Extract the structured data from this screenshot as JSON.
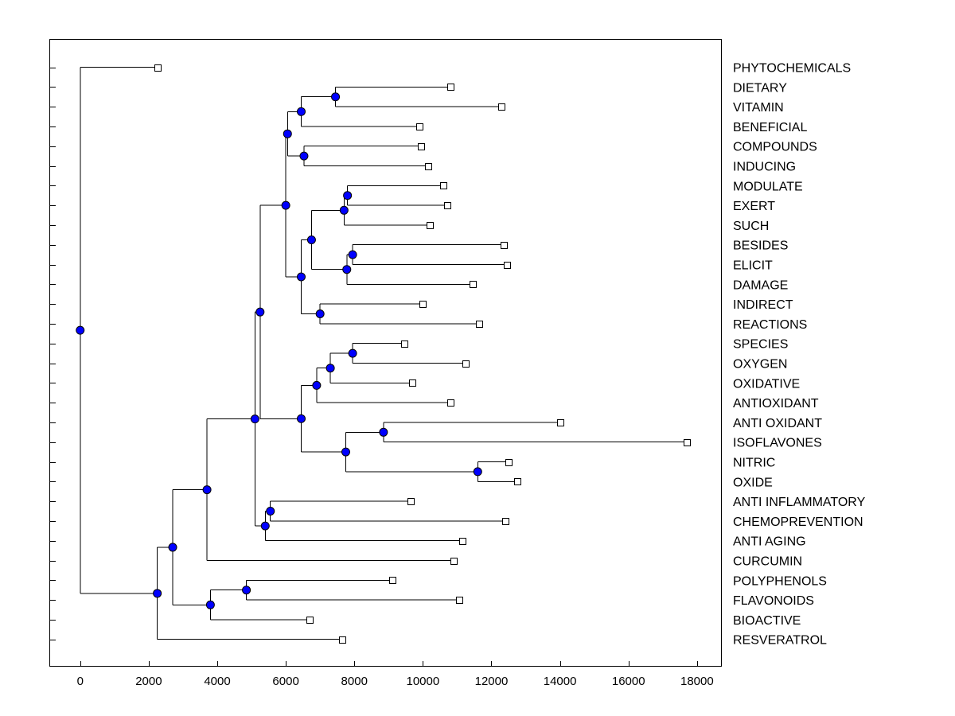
{
  "chart_data": {
    "type": "dendrogram",
    "title": "",
    "xlabel": "",
    "ylabel": "",
    "xlim": [
      -900,
      18700
    ],
    "x_ticks": [
      0,
      2000,
      4000,
      6000,
      8000,
      10000,
      12000,
      14000,
      16000,
      18000
    ],
    "node_color": "#0000ff",
    "leaves": [
      {
        "label": "PHYTOCHEMICALS",
        "x": 2250
      },
      {
        "label": "DIETARY",
        "x": 10800
      },
      {
        "label": "VITAMIN",
        "x": 12300
      },
      {
        "label": "BENEFICIAL",
        "x": 9900
      },
      {
        "label": "COMPOUNDS",
        "x": 9950
      },
      {
        "label": "INDUCING",
        "x": 10150
      },
      {
        "label": "MODULATE",
        "x": 10600
      },
      {
        "label": "EXERT",
        "x": 10700
      },
      {
        "label": "SUCH",
        "x": 10200
      },
      {
        "label": "BESIDES",
        "x": 12350
      },
      {
        "label": "ELICIT",
        "x": 12450
      },
      {
        "label": "DAMAGE",
        "x": 11450
      },
      {
        "label": "INDIRECT",
        "x": 10000
      },
      {
        "label": "REACTIONS",
        "x": 11650
      },
      {
        "label": "SPECIES",
        "x": 9450
      },
      {
        "label": "OXYGEN",
        "x": 11250
      },
      {
        "label": "OXIDATIVE",
        "x": 9700
      },
      {
        "label": "ANTIOXIDANT",
        "x": 10800
      },
      {
        "label": "ANTI OXIDANT",
        "x": 14000
      },
      {
        "label": "ISOFLAVONES",
        "x": 17700
      },
      {
        "label": "NITRIC",
        "x": 12500
      },
      {
        "label": "OXIDE",
        "x": 12750
      },
      {
        "label": "ANTI INFLAMMATORY",
        "x": 9650
      },
      {
        "label": "CHEMOPREVENTION",
        "x": 12400
      },
      {
        "label": "ANTI AGING",
        "x": 11150
      },
      {
        "label": "CURCUMIN",
        "x": 10900
      },
      {
        "label": "POLYPHENOLS",
        "x": 9100
      },
      {
        "label": "FLAVONOIDS",
        "x": 11050
      },
      {
        "label": "BIOACTIVE",
        "x": 6700
      },
      {
        "label": "RESVERATROL",
        "x": 7650
      }
    ],
    "merges": [
      {
        "id": "n1",
        "x": 7450,
        "children": [
          "DIETARY",
          "VITAMIN"
        ]
      },
      {
        "id": "n2",
        "x": 6450,
        "children": [
          "n1",
          "BENEFICIAL"
        ]
      },
      {
        "id": "n3",
        "x": 6530,
        "children": [
          "COMPOUNDS",
          "INDUCING"
        ]
      },
      {
        "id": "n4",
        "x": 6050,
        "children": [
          "n2",
          "n3"
        ]
      },
      {
        "id": "n5",
        "x": 7800,
        "children": [
          "MODULATE",
          "EXERT"
        ]
      },
      {
        "id": "n6",
        "x": 7700,
        "children": [
          "n5",
          "SUCH"
        ]
      },
      {
        "id": "n7",
        "x": 7950,
        "children": [
          "BESIDES",
          "ELICIT"
        ]
      },
      {
        "id": "n8",
        "x": 7780,
        "children": [
          "n7",
          "DAMAGE"
        ]
      },
      {
        "id": "n9",
        "x": 6750,
        "children": [
          "n6",
          "n8"
        ]
      },
      {
        "id": "n10",
        "x": 7000,
        "children": [
          "INDIRECT",
          "REACTIONS"
        ]
      },
      {
        "id": "n11",
        "x": 6450,
        "children": [
          "n9",
          "n10"
        ]
      },
      {
        "id": "n12",
        "x": 6000,
        "children": [
          "n4",
          "n11"
        ]
      },
      {
        "id": "n13",
        "x": 7950,
        "children": [
          "SPECIES",
          "OXYGEN"
        ]
      },
      {
        "id": "n14",
        "x": 7300,
        "children": [
          "n13",
          "OXIDATIVE"
        ]
      },
      {
        "id": "n15",
        "x": 6900,
        "children": [
          "n14",
          "ANTIOXIDANT"
        ]
      },
      {
        "id": "n16",
        "x": 8850,
        "children": [
          "ANTI OXIDANT",
          "ISOFLAVONES"
        ]
      },
      {
        "id": "n17",
        "x": 11600,
        "children": [
          "NITRIC",
          "OXIDE"
        ]
      },
      {
        "id": "n18",
        "x": 7750,
        "children": [
          "n16",
          "n17"
        ]
      },
      {
        "id": "n19",
        "x": 6450,
        "children": [
          "n15",
          "n18"
        ]
      },
      {
        "id": "n20",
        "x": 5250,
        "children": [
          "n12",
          "n19"
        ]
      },
      {
        "id": "n21",
        "x": 5550,
        "children": [
          "ANTI INFLAMMATORY",
          "CHEMOPREVENTION"
        ]
      },
      {
        "id": "n22",
        "x": 5400,
        "children": [
          "n21",
          "ANTI AGING"
        ]
      },
      {
        "id": "n23",
        "x": 5100,
        "children": [
          "n20",
          "n22"
        ]
      },
      {
        "id": "n24",
        "x": 3700,
        "children": [
          "n23",
          "CURCUMIN"
        ]
      },
      {
        "id": "n25",
        "x": 4850,
        "children": [
          "POLYPHENOLS",
          "FLAVONOIDS"
        ]
      },
      {
        "id": "n26",
        "x": 3800,
        "children": [
          "n25",
          "BIOACTIVE"
        ]
      },
      {
        "id": "n27",
        "x": 2700,
        "children": [
          "n24",
          "n26"
        ]
      },
      {
        "id": "n28",
        "x": 2250,
        "children": [
          "n27",
          "RESVERATROL"
        ]
      },
      {
        "id": "n29",
        "x": 0,
        "children": [
          "PHYTOCHEMICALS",
          "n28"
        ]
      }
    ]
  }
}
